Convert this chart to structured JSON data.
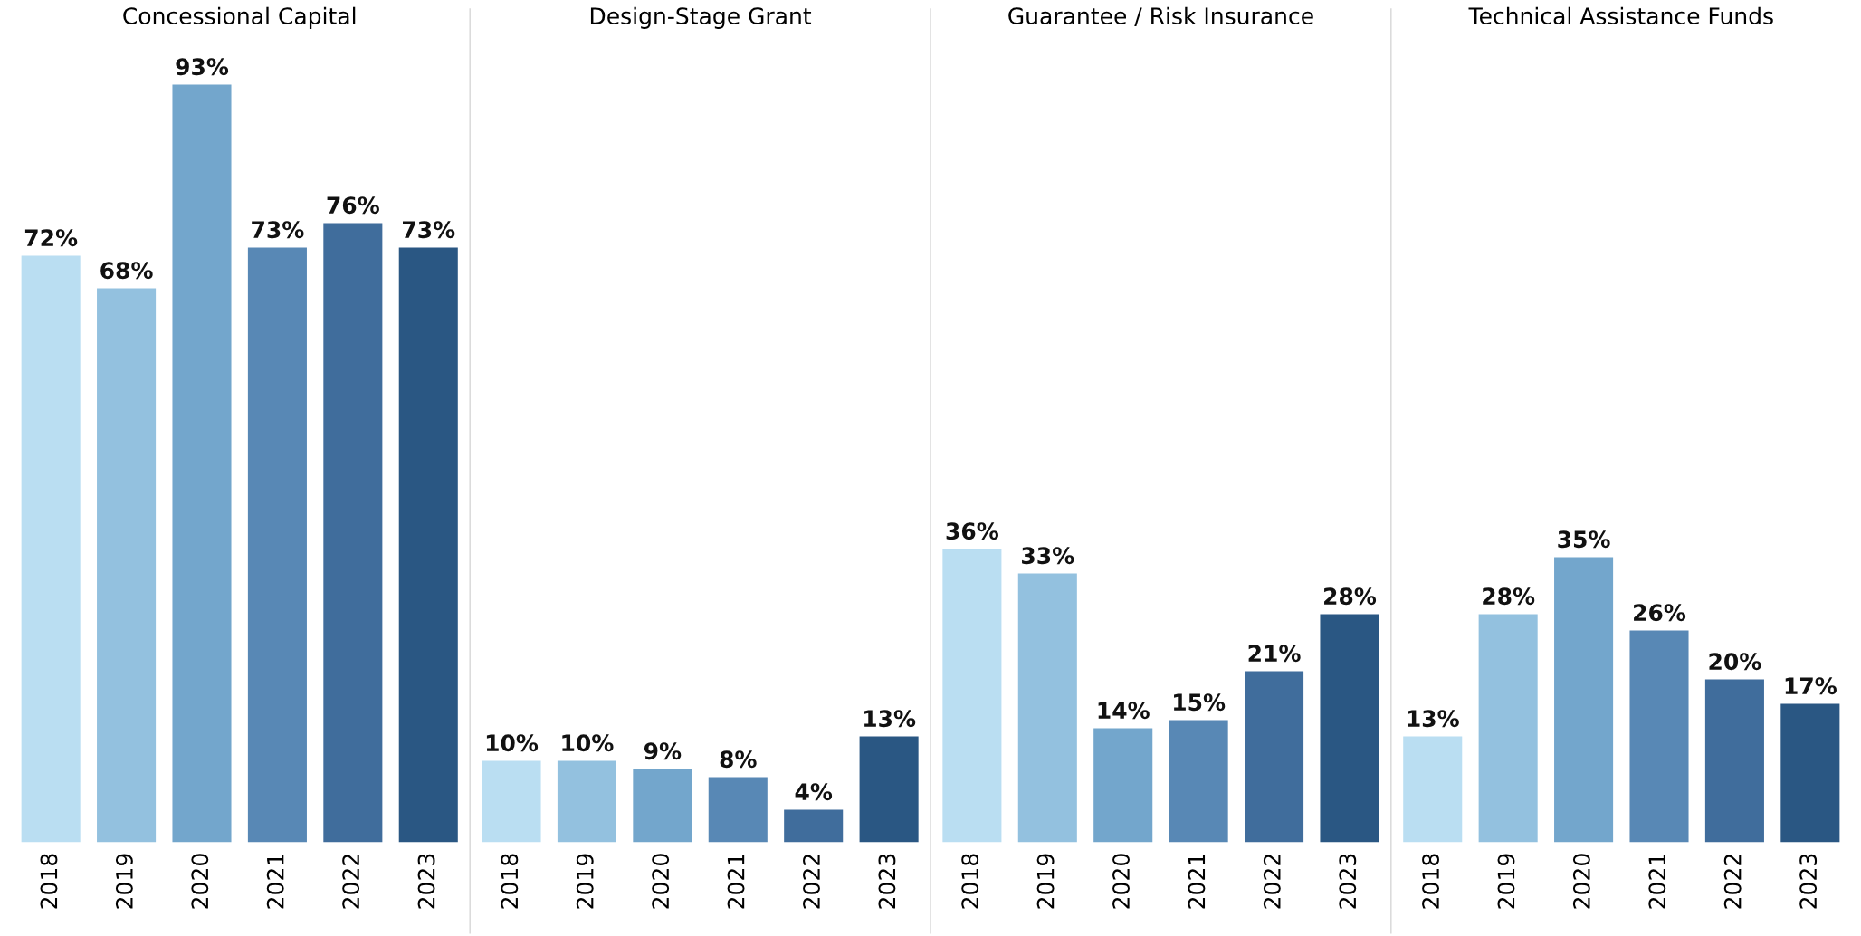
{
  "chart_data": [
    {
      "type": "bar",
      "title": "Concessional Capital",
      "categories": [
        "2018",
        "2019",
        "2020",
        "2021",
        "2022",
        "2023"
      ],
      "values": [
        72,
        68,
        93,
        73,
        76,
        73
      ],
      "colors": [
        "#badef2",
        "#93c1df",
        "#73a6cc",
        "#5888b5",
        "#406d9c",
        "#2a5783"
      ],
      "value_labels": [
        "72%",
        "68%",
        "93%",
        "73%",
        "76%",
        "73%"
      ]
    },
    {
      "type": "bar",
      "title": "Design-Stage Grant",
      "categories": [
        "2018",
        "2019",
        "2020",
        "2021",
        "2022",
        "2023"
      ],
      "values": [
        10,
        10,
        9,
        8,
        4,
        13
      ],
      "colors": [
        "#badef2",
        "#93c1df",
        "#73a6cc",
        "#5888b5",
        "#406d9c",
        "#2a5783"
      ],
      "value_labels": [
        "10%",
        "10%",
        "9%",
        "8%",
        "4%",
        "13%"
      ]
    },
    {
      "type": "bar",
      "title": "Guarantee / Risk Insurance",
      "categories": [
        "2018",
        "2019",
        "2020",
        "2021",
        "2022",
        "2023"
      ],
      "values": [
        36,
        33,
        14,
        15,
        21,
        28
      ],
      "colors": [
        "#badef2",
        "#93c1df",
        "#73a6cc",
        "#5888b5",
        "#406d9c",
        "#2a5783"
      ],
      "value_labels": [
        "36%",
        "33%",
        "14%",
        "15%",
        "21%",
        "28%"
      ]
    },
    {
      "type": "bar",
      "title": "Technical Assistance Funds",
      "categories": [
        "2018",
        "2019",
        "2020",
        "2021",
        "2022",
        "2023"
      ],
      "values": [
        13,
        28,
        35,
        26,
        20,
        17
      ],
      "colors": [
        "#badef2",
        "#93c1df",
        "#73a6cc",
        "#5888b5",
        "#406d9c",
        "#2a5783"
      ],
      "value_labels": [
        "13%",
        "28%",
        "35%",
        "26%",
        "20%",
        "17%"
      ]
    }
  ]
}
